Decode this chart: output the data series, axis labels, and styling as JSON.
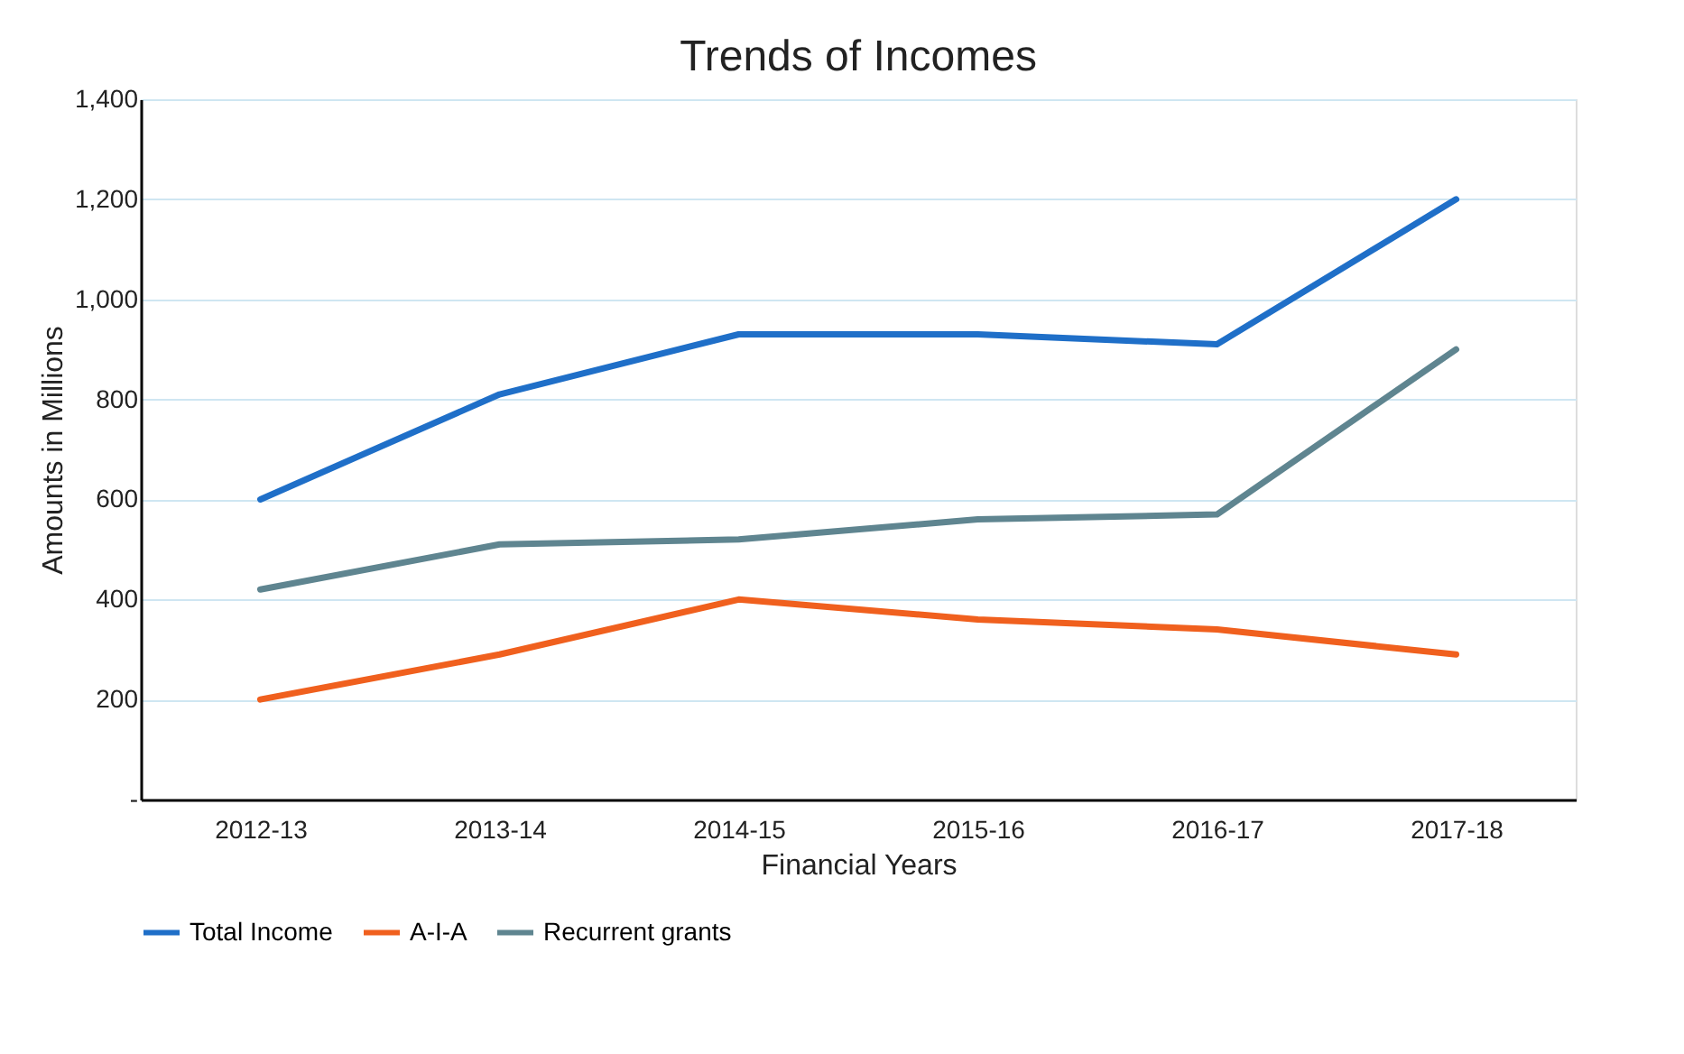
{
  "chart_data": {
    "type": "line",
    "title": "Trends of Incomes",
    "xlabel": "Financial Years",
    "ylabel": "Amounts in Millions",
    "categories": [
      "2012-13",
      "2013-14",
      "2014-15",
      "2015-16",
      "2016-17",
      "2017-18"
    ],
    "series": [
      {
        "name": "Total Income",
        "color": "#1f6fc8",
        "values": [
          600,
          810,
          930,
          930,
          910,
          1200
        ]
      },
      {
        "name": "A-I-A",
        "color": "#f0601e",
        "values": [
          200,
          290,
          400,
          360,
          340,
          290
        ]
      },
      {
        "name": "Recurrent grants",
        "color": "#5f8590",
        "values": [
          420,
          510,
          520,
          560,
          570,
          900
        ]
      }
    ],
    "ylim": [
      0,
      1400
    ],
    "yticks": [
      {
        "value": 0,
        "label": "-"
      },
      {
        "value": 200,
        "label": "200"
      },
      {
        "value": 400,
        "label": "400"
      },
      {
        "value": 600,
        "label": "600"
      },
      {
        "value": 800,
        "label": "800"
      },
      {
        "value": 1000,
        "label": "1,000"
      },
      {
        "value": 1200,
        "label": "1,200"
      },
      {
        "value": 1400,
        "label": "1,400"
      }
    ],
    "grid": "y",
    "legend": "bottom",
    "marker": "none",
    "line_style": "solid"
  }
}
